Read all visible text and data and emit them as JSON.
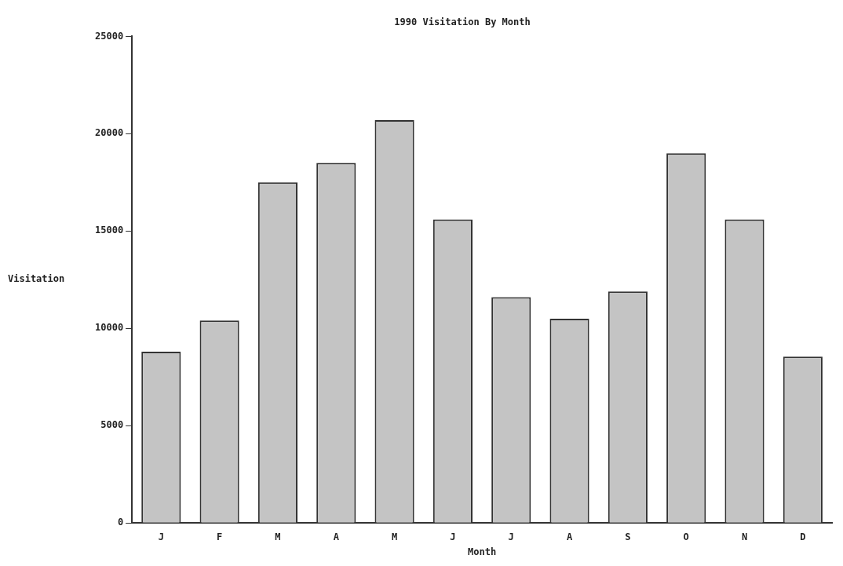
{
  "chart_data": {
    "type": "bar",
    "title": "1990 Visitation By Month",
    "xlabel": "Month",
    "ylabel": "Visitation",
    "categories": [
      "J",
      "F",
      "M",
      "A",
      "M",
      "J",
      "J",
      "A",
      "S",
      "O",
      "N",
      "D"
    ],
    "values": [
      8800,
      10400,
      17500,
      18500,
      20700,
      15600,
      11600,
      10500,
      11900,
      19000,
      15600,
      8550
    ],
    "color": "#c4c4c4",
    "ylim": [
      0,
      25000
    ],
    "yticks": [
      0,
      5000,
      10000,
      15000,
      20000,
      25000
    ],
    "grid": false,
    "legend": false
  }
}
